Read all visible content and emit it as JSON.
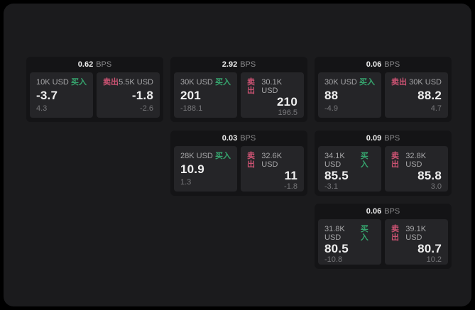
{
  "labels": {
    "buy": "买入",
    "sell": "卖出",
    "bps": "BPS"
  },
  "colors": {
    "bg-outer": "#000000",
    "bg-panel": "#1b1b1d",
    "bg-card": "#141416",
    "bg-tile": "#252528",
    "buy-green": "#36a56e",
    "sell-red": "#cd5373"
  },
  "cards": [
    {
      "bps": "0.62",
      "buy": {
        "amount": "10K USD",
        "value": "-3.7",
        "sub": "4.3"
      },
      "sell": {
        "amount": "5.5K USD",
        "value": "-1.8",
        "sub": "-2.6"
      }
    },
    {
      "bps": "2.92",
      "buy": {
        "amount": "30K USD",
        "value": "201",
        "sub": "-188.1"
      },
      "sell": {
        "amount": "30.1K USD",
        "value": "210",
        "sub": "196.5"
      }
    },
    {
      "bps": "0.06",
      "buy": {
        "amount": "30K USD",
        "value": "88",
        "sub": "-4.9"
      },
      "sell": {
        "amount": "30K USD",
        "value": "88.2",
        "sub": "4.7"
      }
    },
    {
      "bps": "0.03",
      "buy": {
        "amount": "28K USD",
        "value": "10.9",
        "sub": "1.3"
      },
      "sell": {
        "amount": "32.6K USD",
        "value": "11",
        "sub": "-1.8"
      }
    },
    {
      "bps": "0.09",
      "buy": {
        "amount": "34.1K USD",
        "value": "85.5",
        "sub": "-3.1"
      },
      "sell": {
        "amount": "32.8K USD",
        "value": "85.8",
        "sub": "3.0"
      }
    },
    {
      "bps": "0.06",
      "buy": {
        "amount": "31.8K USD",
        "value": "80.5",
        "sub": "-10.8"
      },
      "sell": {
        "amount": "39.1K USD",
        "value": "80.7",
        "sub": "10.2"
      }
    }
  ]
}
